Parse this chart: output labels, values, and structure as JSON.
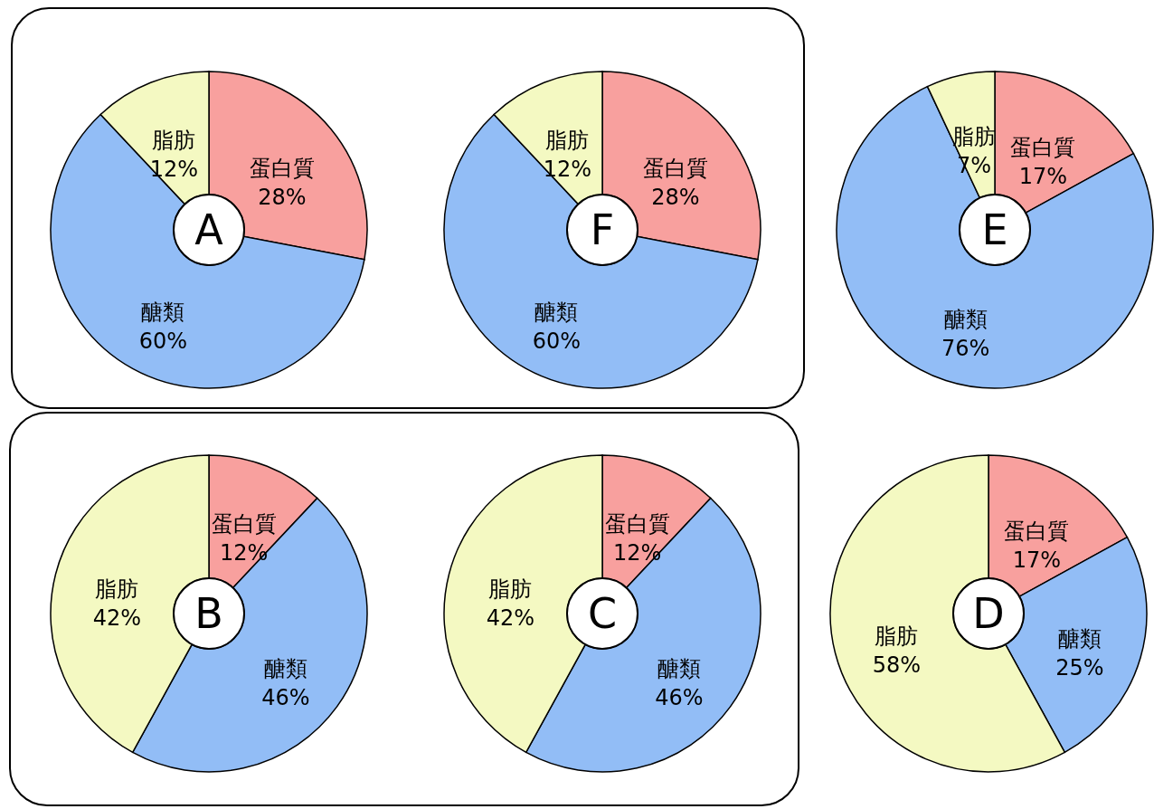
{
  "chart_data": [
    {
      "type": "donut",
      "title": "A",
      "categories": [
        "蛋白質",
        "醣類",
        "脂肪"
      ],
      "values": [
        28,
        60,
        12
      ],
      "colors": [
        "#f8a09e",
        "#92bdf6",
        "#f4f9c2"
      ],
      "value_labels": [
        "28%",
        "60%",
        "12%"
      ]
    },
    {
      "type": "donut",
      "title": "F",
      "categories": [
        "蛋白質",
        "醣類",
        "脂肪"
      ],
      "values": [
        28,
        60,
        12
      ],
      "colors": [
        "#f8a09e",
        "#92bdf6",
        "#f4f9c2"
      ],
      "value_labels": [
        "28%",
        "60%",
        "12%"
      ]
    },
    {
      "type": "donut",
      "title": "E",
      "categories": [
        "蛋白質",
        "醣類",
        "脂肪"
      ],
      "values": [
        17,
        76,
        7
      ],
      "colors": [
        "#f8a09e",
        "#92bdf6",
        "#f4f9c2"
      ],
      "value_labels": [
        "17%",
        "76%",
        "7%"
      ]
    },
    {
      "type": "donut",
      "title": "B",
      "categories": [
        "蛋白質",
        "醣類",
        "脂肪"
      ],
      "values": [
        12,
        46,
        42
      ],
      "colors": [
        "#f8a09e",
        "#92bdf6",
        "#f4f9c2"
      ],
      "value_labels": [
        "12%",
        "46%",
        "42%"
      ]
    },
    {
      "type": "donut",
      "title": "C",
      "categories": [
        "蛋白質",
        "醣類",
        "脂肪"
      ],
      "values": [
        12,
        46,
        42
      ],
      "colors": [
        "#f8a09e",
        "#92bdf6",
        "#f4f9c2"
      ],
      "value_labels": [
        "12%",
        "46%",
        "42%"
      ]
    },
    {
      "type": "donut",
      "title": "D",
      "categories": [
        "蛋白質",
        "醣類",
        "脂肪"
      ],
      "values": [
        17,
        25,
        58
      ],
      "colors": [
        "#f8a09e",
        "#92bdf6",
        "#f4f9c2"
      ],
      "value_labels": [
        "17%",
        "25%",
        "58%"
      ]
    }
  ]
}
